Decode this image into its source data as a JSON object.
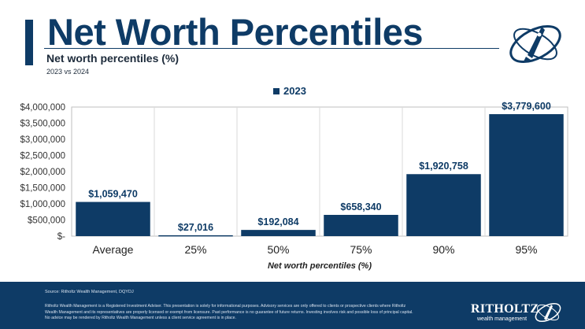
{
  "header": {
    "title": "Net Worth Percentiles",
    "subtitle": "Net worth percentiles (%)",
    "subsubtitle": "2023 vs 2024"
  },
  "colors": {
    "primary": "#0e3b66",
    "bar": "#0e3b66",
    "footer": "#0e3b66"
  },
  "logo": {
    "icon": "rocket-globe-icon"
  },
  "chart_data": {
    "type": "bar",
    "categories": [
      "Average",
      "25%",
      "50%",
      "75%",
      "90%",
      "95%"
    ],
    "series": [
      {
        "name": "2023",
        "values": [
          1059470,
          27016,
          192084,
          658340,
          1920758,
          3779600
        ]
      }
    ],
    "data_labels": [
      "$1,059,470",
      "$27,016",
      "$192,084",
      "$658,340",
      "$1,920,758",
      "$3,779,600"
    ],
    "yticks": [
      "$-",
      "$500,000",
      "$1,000,000",
      "$1,500,000",
      "$2,000,000",
      "$2,500,000",
      "$3,000,000",
      "$3,500,000",
      "$4,000,000"
    ],
    "ylim": [
      0,
      4000000
    ],
    "xlabel": "Net worth percentiles (%)",
    "ylabel": "",
    "legend": "top-center",
    "grid": false
  },
  "footer": {
    "source": "Source: Ritholtz Wealth Management, DQYDJ",
    "disclaimer": "Ritholtz Wealth Management is a Registered Investment Adviser. This presentation is solely for informational purposes. Advisory services are only offered to clients or prospective clients where Ritholtz Wealth Management and its representatives are properly licensed or exempt from licensure. Past performance is no guarantee of future returns. Investing involves risk and possible loss of principal capital. No advice may be rendered by Ritholtz Wealth Management unless a client service agreement is in place.",
    "brand_name": "RITHOLTZ",
    "brand_sub": "wealth management"
  }
}
